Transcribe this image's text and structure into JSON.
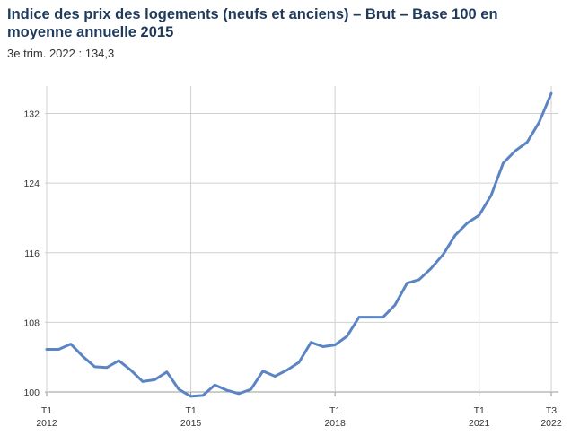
{
  "chart_data": {
    "type": "line",
    "title": "Indice des prix des logements (neufs et anciens) – Brut – Base 100 en moyenne annuelle 2015",
    "subtitle": "3e trim. 2022 : 134,3",
    "xlabel": "",
    "ylabel": "",
    "ylim": [
      100,
      134.3
    ],
    "y_ticks": [
      100,
      108,
      116,
      124,
      132
    ],
    "x_ticks": [
      {
        "index": 0,
        "line1": "T1",
        "line2": "2012"
      },
      {
        "index": 12,
        "line1": "T1",
        "line2": "2015"
      },
      {
        "index": 24,
        "line1": "T1",
        "line2": "2018"
      },
      {
        "index": 36,
        "line1": "T1",
        "line2": "2021"
      },
      {
        "index": 42,
        "line1": "T3",
        "line2": "2022"
      }
    ],
    "grid": true,
    "colors": {
      "line": "#5b84c4",
      "grid": "#d0d0d0",
      "axis": "#999999"
    },
    "series": [
      {
        "values": [
          104.9,
          104.9,
          105.5,
          104.1,
          102.9,
          102.8,
          103.6,
          102.5,
          101.2,
          101.4,
          102.3,
          100.3,
          99.5,
          99.6,
          100.8,
          100.2,
          99.8,
          100.3,
          102.4,
          101.8,
          102.5,
          103.4,
          105.7,
          105.2,
          105.4,
          106.4,
          108.6,
          108.6,
          108.6,
          110.0,
          112.5,
          112.9,
          114.2,
          115.8,
          118.0,
          119.4,
          120.3,
          122.6,
          126.3,
          127.7,
          128.7,
          131.0,
          134.3
        ]
      }
    ]
  }
}
